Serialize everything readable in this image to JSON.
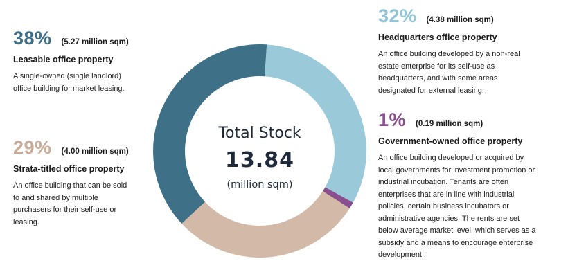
{
  "chart_data": {
    "type": "pie",
    "center": {
      "label": "Total Stock",
      "value": "13.84",
      "unit": "(million sqm)"
    },
    "slices": [
      {
        "key": "leasable",
        "percent_label": "38%",
        "value": 38,
        "amount": "(5.27 million sqm)",
        "title": "Leasable office property",
        "description": "A single-owned (single landlord)\noffice building for market leasing.",
        "color": "#3e7088",
        "text_color": "#3d6f87"
      },
      {
        "key": "hq",
        "percent_label": "32%",
        "value": 32,
        "amount": "(4.38 million sqm)",
        "title": "Headquarters office property",
        "description": "An office building developed by a non-real\nestate enterprise for its self-use as\nheadquarters, and with some areas\ndesignated for external leasing.",
        "color": "#9ac9d9",
        "text_color": "#8fc5d6"
      },
      {
        "key": "gov",
        "percent_label": "1%",
        "value": 1,
        "amount": "(0.19 million sqm)",
        "title": "Government-owned office property",
        "description": "An office building developed or acquired by\nlocal governments for investment promotion or\nindustrial incubation. Tenants are often\nenterprises that are in line with industrial\npolicies, certain business incubators or\nadministrative agencies. The rents are set\nbelow average market level, which serves as a\nsubsidy and a means to encourage enterprise\ndevelopment.",
        "color": "#8a4f8e",
        "text_color": "#8a4f8e"
      },
      {
        "key": "strata",
        "percent_label": "29%",
        "value": 29,
        "amount": "(4.00 million sqm)",
        "title": "Strata-titled office property",
        "description": "An office building that can be sold\nto and shared by multiple\npurchasers for their self-use or\nleasing.",
        "color": "#d3baa8",
        "text_color": "#cbab98"
      }
    ]
  }
}
